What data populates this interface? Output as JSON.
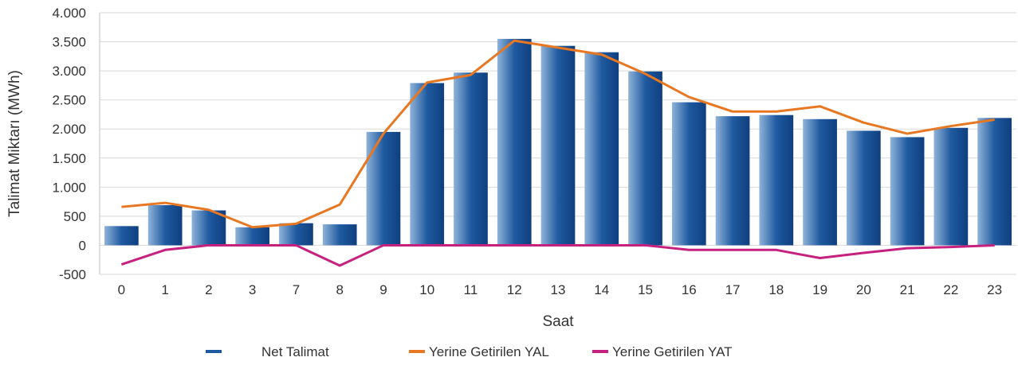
{
  "chart_data": {
    "type": "bar",
    "xlabel": "Saat",
    "ylabel": "Talimat Miktarı (MWh)",
    "categories": [
      "0",
      "1",
      "2",
      "3",
      "7",
      "8",
      "9",
      "10",
      "11",
      "12",
      "13",
      "14",
      "15",
      "16",
      "17",
      "18",
      "19",
      "20",
      "21",
      "22",
      "23"
    ],
    "ylim": [
      -500,
      4000
    ],
    "ytick_values": [
      -500,
      0,
      500,
      1000,
      1500,
      2000,
      2500,
      3000,
      3500,
      4000
    ],
    "ytick_labels": [
      "-500",
      "0",
      "500",
      "1.000",
      "1.500",
      "2.000",
      "2.500",
      "3.000",
      "3.500",
      "4.000"
    ],
    "grid": true,
    "legend_position": "bottom",
    "series": [
      {
        "name": "Net Talimat",
        "kind": "bar",
        "color": "#1f5aa0",
        "values": [
          330,
          690,
          600,
          310,
          380,
          360,
          1950,
          2790,
          2970,
          3550,
          3430,
          3320,
          2990,
          2460,
          2220,
          2240,
          2170,
          1970,
          1860,
          2020,
          2190
        ]
      },
      {
        "name": "Yerine Getirilen YAL",
        "kind": "line",
        "color": "#e87722",
        "values": [
          660,
          730,
          610,
          310,
          370,
          700,
          1920,
          2800,
          2930,
          3520,
          3400,
          3280,
          2950,
          2550,
          2300,
          2300,
          2390,
          2110,
          1920,
          2050,
          2160
        ]
      },
      {
        "name": "Yerine Getirilen YAT",
        "kind": "line",
        "color": "#c7217f",
        "values": [
          -330,
          -80,
          0,
          0,
          0,
          -350,
          0,
          0,
          0,
          0,
          0,
          0,
          0,
          -80,
          -80,
          -80,
          -220,
          -130,
          -50,
          -30,
          0
        ]
      }
    ]
  }
}
